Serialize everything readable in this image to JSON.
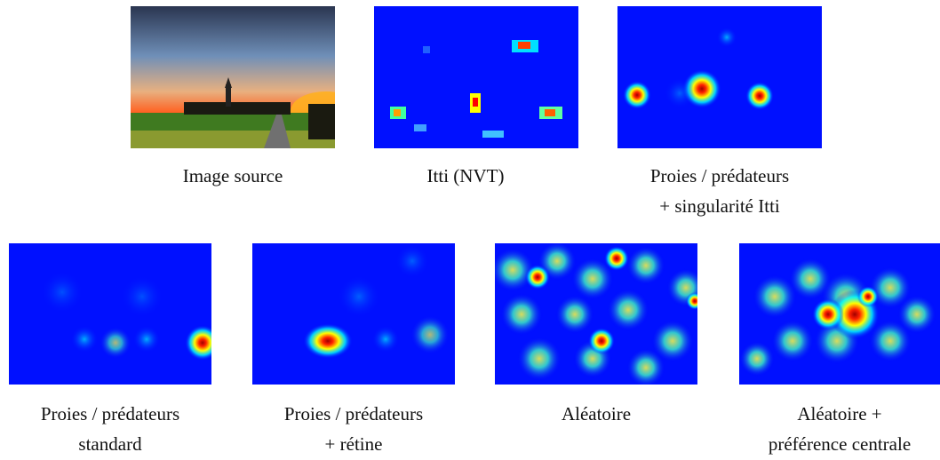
{
  "figure": {
    "panels": [
      {
        "lines": [
          "Image source"
        ]
      },
      {
        "lines": [
          "Itti (NVT)"
        ]
      },
      {
        "lines": [
          "Proies / prédateurs",
          "+ singularité Itti"
        ]
      },
      {
        "lines": [
          "Proies / prédateurs",
          "standard"
        ]
      },
      {
        "lines": [
          "Proies / prédateurs",
          "+ rétine"
        ]
      },
      {
        "lines": [
          "Aléatoire"
        ]
      },
      {
        "lines": [
          "Aléatoire +",
          "préférence centrale"
        ]
      }
    ]
  }
}
